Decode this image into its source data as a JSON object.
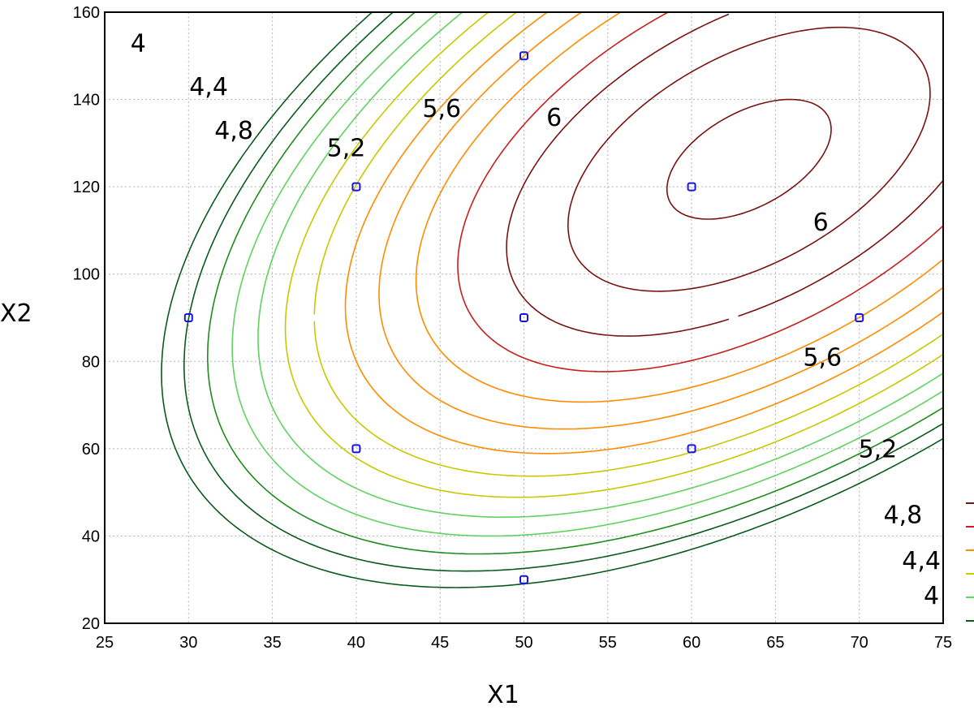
{
  "chart_data": {
    "type": "contour",
    "title": "",
    "xlabel": "X1",
    "ylabel": "X2",
    "xlim": [
      25,
      75
    ],
    "ylim": [
      20,
      160
    ],
    "x_ticks": [
      "25",
      "30",
      "35",
      "40",
      "45",
      "50",
      "55",
      "60",
      "65",
      "70",
      "75"
    ],
    "y_ticks": [
      "20",
      "40",
      "60",
      "80",
      "100",
      "120",
      "140",
      "160"
    ],
    "grid": true,
    "legend_position": "right (cut off)",
    "contour_levels": [
      3.6,
      3.8,
      4.0,
      4.2,
      4.4,
      4.6,
      4.8,
      5.0,
      5.2,
      5.4,
      5.6,
      5.8,
      6.0,
      6.2
    ],
    "colors": {
      "darkred": "#7a1212",
      "red": "#c81e1e",
      "orange": "#ff8c00",
      "yellow": "#c8c800",
      "lightgreen": "#5fd25f",
      "green": "#1e8c1e",
      "darkgreen": "#0a5a1e",
      "points": "#1414e6"
    },
    "contour_labels": [
      {
        "text": "4",
        "x": 27,
        "y": 151
      },
      {
        "text": "4,4",
        "x": 31.2,
        "y": 141
      },
      {
        "text": "4,8",
        "x": 32.7,
        "y": 131
      },
      {
        "text": "5,2",
        "x": 39.4,
        "y": 127
      },
      {
        "text": "5,6",
        "x": 45.1,
        "y": 136
      },
      {
        "text": "6",
        "x": 51.8,
        "y": 134
      },
      {
        "text": "6",
        "x": 67.7,
        "y": 110
      },
      {
        "text": "5,6",
        "x": 67.8,
        "y": 79
      },
      {
        "text": "5,2",
        "x": 71.1,
        "y": 58
      },
      {
        "text": "4,8",
        "x": 72.6,
        "y": 43
      },
      {
        "text": "4,4",
        "x": 73.7,
        "y": 32.5
      },
      {
        "text": "4",
        "x": 74.3,
        "y": 24.5
      }
    ],
    "design_points": [
      {
        "x": 30,
        "y": 90
      },
      {
        "x": 40,
        "y": 60
      },
      {
        "x": 40,
        "y": 120
      },
      {
        "x": 50,
        "y": 30
      },
      {
        "x": 50,
        "y": 90
      },
      {
        "x": 50,
        "y": 150
      },
      {
        "x": 60,
        "y": 60
      },
      {
        "x": 60,
        "y": 120
      },
      {
        "x": 70,
        "y": 90
      }
    ]
  }
}
